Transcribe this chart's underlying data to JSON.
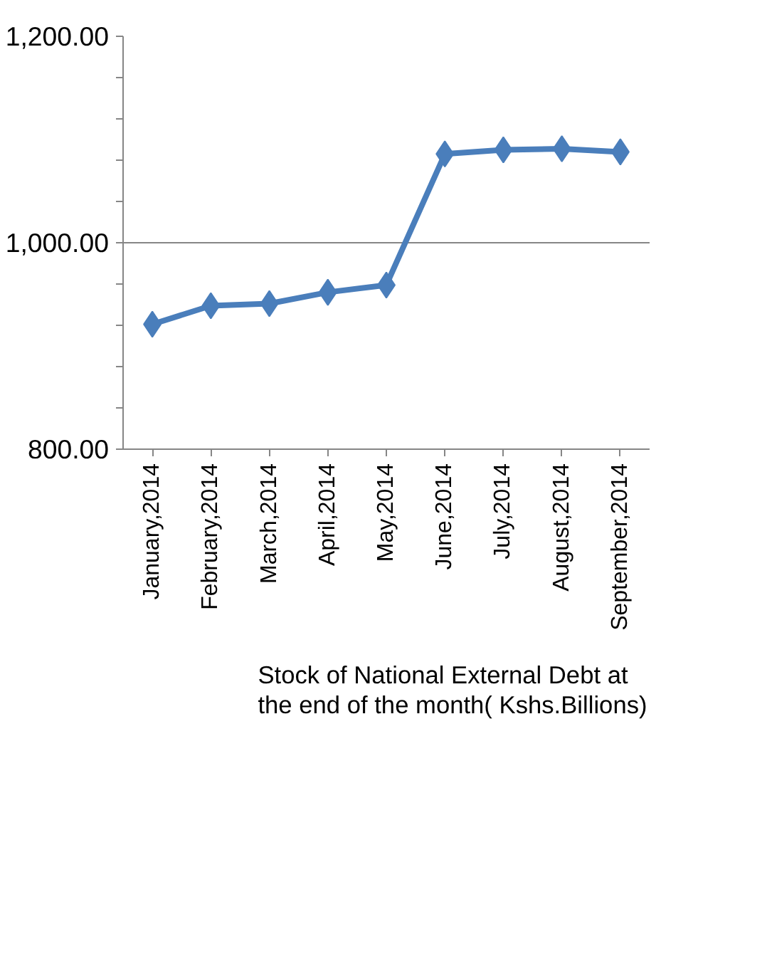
{
  "chart_data": {
    "type": "line",
    "categories": [
      "January,2014",
      "February,2014",
      "March,2014",
      "April,2014",
      "May,2014",
      "June,2014",
      "July,2014",
      "August,2014",
      "September,2014"
    ],
    "series": [
      {
        "name": "Stock of National External Debt at the end of the month( Kshs.Billions)",
        "color": "#4a7ebb",
        "values": [
          921,
          939,
          941,
          952,
          959,
          1086,
          1090,
          1091,
          1088
        ]
      }
    ],
    "ylim": [
      800,
      1200
    ],
    "yticks": [
      {
        "value": 800,
        "label": "800.00"
      },
      {
        "value": 840,
        "label": null
      },
      {
        "value": 880,
        "label": null
      },
      {
        "value": 920,
        "label": null
      },
      {
        "value": 960,
        "label": null
      },
      {
        "value": 1000,
        "label": "1,000.00"
      },
      {
        "value": 1040,
        "label": null
      },
      {
        "value": 1080,
        "label": null
      },
      {
        "value": 1120,
        "label": null
      },
      {
        "value": 1160,
        "label": null
      },
      {
        "value": 1200,
        "label": "1,200.00"
      }
    ],
    "grid": "y",
    "legend": "bottom",
    "marker": "diamond",
    "line_style": "solid"
  }
}
